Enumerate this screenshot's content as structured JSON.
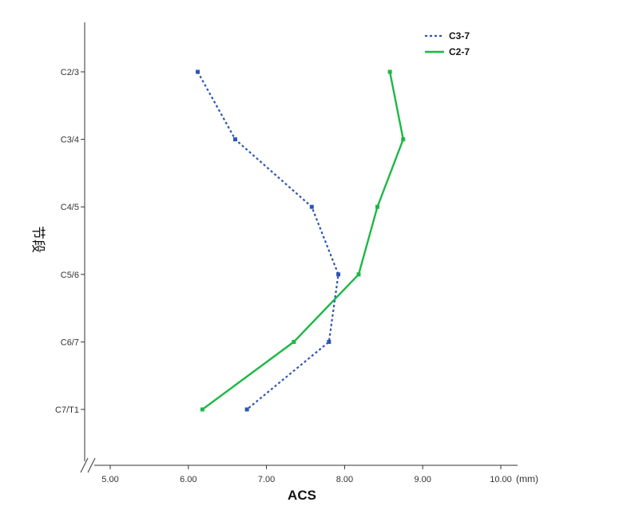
{
  "chart_data": {
    "type": "line",
    "xlabel": "ACS",
    "x_unit": "(mm)",
    "ylabel": "节段",
    "xlim": [
      5.0,
      10.0
    ],
    "x_ticks": [
      "5.00",
      "6.00",
      "7.00",
      "8.00",
      "9.00",
      "10.00"
    ],
    "categories": [
      "C2/3",
      "C3/4",
      "C4/5",
      "C5/6",
      "C6/7",
      "C7/T1"
    ],
    "series": [
      {
        "name": "C3-7",
        "style": "dotted",
        "color": "#2e55b5",
        "values": [
          6.12,
          6.6,
          7.58,
          7.92,
          7.8,
          6.75
        ]
      },
      {
        "name": "C2-7",
        "style": "solid",
        "color": "#1db845",
        "values": [
          8.58,
          8.75,
          8.42,
          8.18,
          7.35,
          6.18
        ]
      }
    ],
    "legend_position": "top-right",
    "grid": false
  }
}
